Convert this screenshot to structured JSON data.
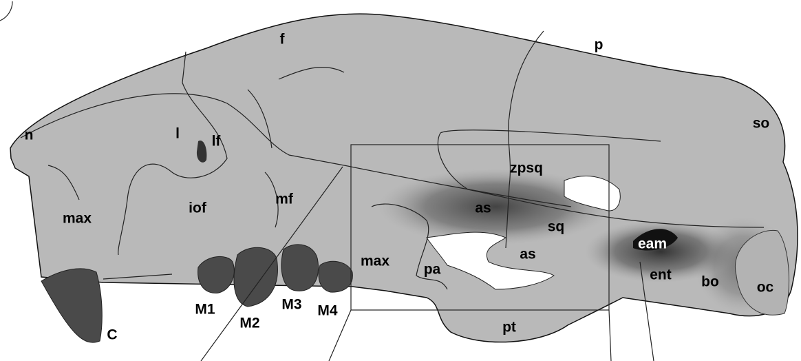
{
  "labels": [
    "f",
    "p",
    "n",
    "l",
    "lf",
    "so",
    "zpsq",
    "iof",
    "mf",
    "max",
    "as",
    "sq",
    "eam",
    "max",
    "pa",
    "as",
    "ent",
    "bo",
    "oc",
    "M1",
    "M2",
    "M3",
    "M4",
    "C",
    "pt"
  ]
}
